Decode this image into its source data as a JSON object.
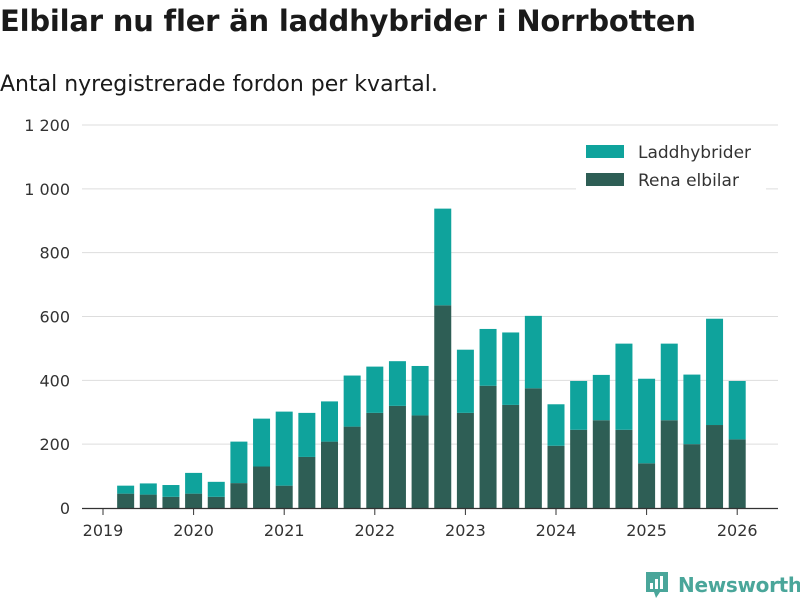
{
  "page": {
    "title": "Elbilar nu fler än laddhybrider i Norrbotten",
    "subtitle": "Antal nyregistrerade fordon per kvartal.",
    "brand": "Newsworthy"
  },
  "colors": {
    "phev": "#0fa39c",
    "bev": "#2e5e55",
    "grid": "#dddddd",
    "axis": "#333333",
    "brand": "#4aa69a"
  },
  "chart_data": {
    "type": "bar",
    "stacked": true,
    "title": "Elbilar nu fler än laddhybrider i Norrbotten",
    "subtitle": "Antal nyregistrerade fordon per kvartal.",
    "xlabel": "",
    "ylabel": "",
    "ylim": [
      0,
      1200
    ],
    "yticks": [
      0,
      200,
      400,
      600,
      800,
      1000,
      1200
    ],
    "ytick_labels": [
      "0",
      "200",
      "400",
      "600",
      "800",
      "1 000",
      "1 200"
    ],
    "xlim": [
      2019.0,
      2026.3
    ],
    "xticks": [
      2019,
      2020,
      2021,
      2022,
      2023,
      2024,
      2025,
      2026
    ],
    "xtick_labels": [
      "2019",
      "2020",
      "2021",
      "2022",
      "2023",
      "2024",
      "2025",
      "2026"
    ],
    "grid": true,
    "legend_position": "top-right",
    "categories": [
      "2019 Q2",
      "2019 Q3",
      "2019 Q4",
      "2020 Q1",
      "2020 Q2",
      "2020 Q3",
      "2020 Q4",
      "2021 Q1",
      "2021 Q2",
      "2021 Q3",
      "2021 Q4",
      "2022 Q1",
      "2022 Q2",
      "2022 Q3",
      "2022 Q4",
      "2023 Q1",
      "2023 Q2",
      "2023 Q3",
      "2023 Q4",
      "2024 Q1",
      "2024 Q2",
      "2024 Q3",
      "2024 Q4",
      "2025 Q1",
      "2025 Q2",
      "2025 Q3",
      "2025 Q4",
      "2026 Q1"
    ],
    "x": [
      2019.25,
      2019.5,
      2019.75,
      2020.0,
      2020.25,
      2020.5,
      2020.75,
      2021.0,
      2021.25,
      2021.5,
      2021.75,
      2022.0,
      2022.25,
      2022.5,
      2022.75,
      2023.0,
      2023.25,
      2023.5,
      2023.75,
      2024.0,
      2024.25,
      2024.5,
      2024.75,
      2025.0,
      2025.25,
      2025.5,
      2025.75,
      2026.0
    ],
    "series": [
      {
        "name": "Rena elbilar",
        "color_key": "bev",
        "values": [
          45,
          42,
          35,
          45,
          35,
          78,
          130,
          70,
          160,
          208,
          255,
          298,
          320,
          290,
          635,
          298,
          383,
          323,
          375,
          195,
          245,
          275,
          245,
          140,
          275,
          200,
          260,
          215
        ]
      },
      {
        "name": "Laddhybrider",
        "color_key": "phev",
        "values": [
          25,
          35,
          37,
          65,
          47,
          130,
          150,
          232,
          138,
          126,
          160,
          145,
          140,
          155,
          303,
          198,
          178,
          227,
          227,
          130,
          153,
          142,
          270,
          265,
          240,
          218,
          333,
          183
        ]
      }
    ],
    "legend": [
      "Laddhybrider",
      "Rena elbilar"
    ]
  }
}
